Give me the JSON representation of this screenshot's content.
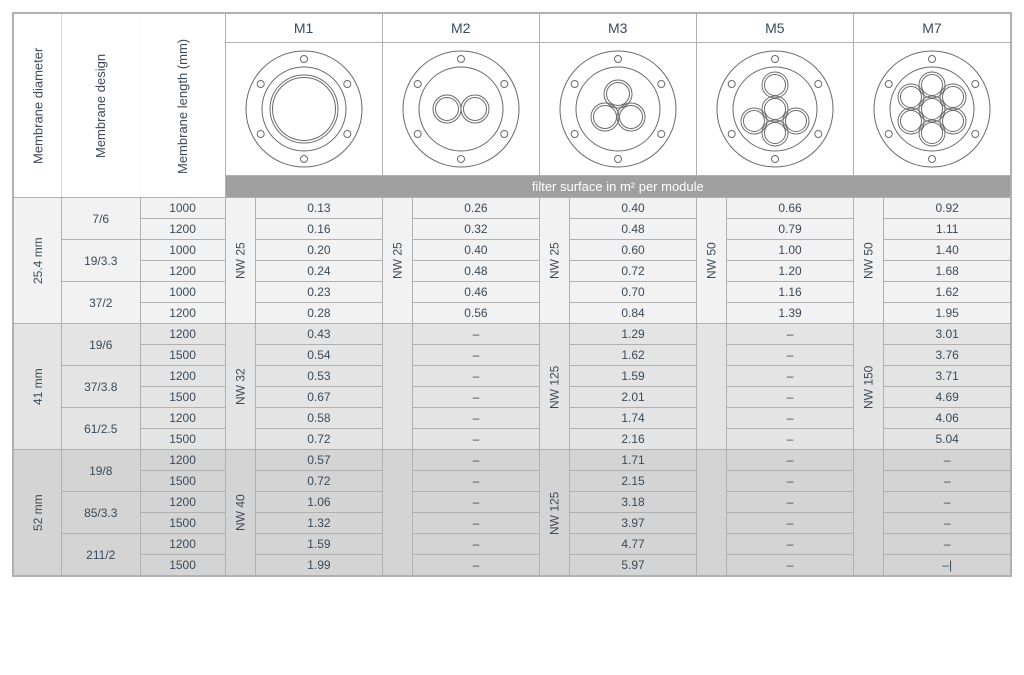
{
  "headers": {
    "diameter": "Membrane diameter",
    "design": "Membrane design",
    "length": "Membrane length (mm)",
    "modules": [
      "M1",
      "M2",
      "M3",
      "M5",
      "M7"
    ],
    "banner": "filter surface in m² per module"
  },
  "diagrams": {
    "flange": {
      "outer_r": 58,
      "inner_r": 42,
      "bolt_r": 50,
      "bolt_n": 6,
      "bolt_hole_r": 3.5,
      "stroke": "#6a6a6a"
    },
    "tubes": [
      [
        [
          0,
          0,
          34
        ]
      ],
      [
        [
          -14,
          0,
          14
        ],
        [
          14,
          0,
          14
        ]
      ],
      [
        [
          0,
          -15,
          14
        ],
        [
          -13,
          8,
          14
        ],
        [
          13,
          8,
          14
        ]
      ],
      [
        [
          0,
          0,
          13
        ],
        [
          0,
          -24,
          13
        ],
        [
          0,
          24,
          13
        ],
        [
          -21,
          12,
          13
        ],
        [
          21,
          12,
          13
        ]
      ],
      [
        [
          0,
          0,
          13
        ],
        [
          0,
          -24,
          13
        ],
        [
          0,
          24,
          13
        ],
        [
          -21,
          12,
          13
        ],
        [
          21,
          12,
          13
        ],
        [
          -21,
          -12,
          13
        ],
        [
          21,
          -12,
          13
        ]
      ]
    ]
  },
  "sections": [
    {
      "diameter": "25.4 mm",
      "shade": "sec0",
      "nw": [
        "NW 25",
        "NW 25",
        "NW 25",
        "NW 50",
        "NW 50"
      ],
      "designs": [
        {
          "design": "7/6",
          "rows": [
            {
              "len": "1000",
              "v": [
                "0.13",
                "0.26",
                "0.40",
                "0.66",
                "0.92"
              ]
            },
            {
              "len": "1200",
              "v": [
                "0.16",
                "0.32",
                "0.48",
                "0.79",
                "1.11"
              ]
            }
          ]
        },
        {
          "design": "19/3.3",
          "rows": [
            {
              "len": "1000",
              "v": [
                "0.20",
                "0.40",
                "0.60",
                "1.00",
                "1.40"
              ]
            },
            {
              "len": "1200",
              "v": [
                "0.24",
                "0.48",
                "0.72",
                "1.20",
                "1.68"
              ]
            }
          ]
        },
        {
          "design": "37/2",
          "rows": [
            {
              "len": "1000",
              "v": [
                "0.23",
                "0.46",
                "0.70",
                "1.16",
                "1.62"
              ]
            },
            {
              "len": "1200",
              "v": [
                "0.28",
                "0.56",
                "0.84",
                "1.39",
                "1.95"
              ]
            }
          ]
        }
      ]
    },
    {
      "diameter": "41 mm",
      "shade": "sec1",
      "nw": [
        "NW 32",
        "",
        "NW 125",
        "",
        "NW 150"
      ],
      "designs": [
        {
          "design": "19/6",
          "rows": [
            {
              "len": "1200",
              "v": [
                "0.43",
                "–",
                "1.29",
                "–",
                "3.01"
              ]
            },
            {
              "len": "1500",
              "v": [
                "0.54",
                "–",
                "1.62",
                "–",
                "3.76"
              ]
            }
          ]
        },
        {
          "design": "37/3.8",
          "rows": [
            {
              "len": "1200",
              "v": [
                "0.53",
                "–",
                "1.59",
                "–",
                "3.71"
              ]
            },
            {
              "len": "1500",
              "v": [
                "0.67",
                "–",
                "2.01",
                "–",
                "4.69"
              ]
            }
          ]
        },
        {
          "design": "61/2.5",
          "rows": [
            {
              "len": "1200",
              "v": [
                "0.58",
                "–",
                "1.74",
                "–",
                "4.06"
              ]
            },
            {
              "len": "1500",
              "v": [
                "0.72",
                "–",
                "2.16",
                "–",
                "5.04"
              ]
            }
          ]
        }
      ]
    },
    {
      "diameter": "52 mm",
      "shade": "sec2",
      "nw": [
        "NW 40",
        "",
        "NW 125",
        "",
        ""
      ],
      "designs": [
        {
          "design": "19/8",
          "rows": [
            {
              "len": "1200",
              "v": [
                "0.57",
                "–",
                "1.71",
                "–",
                "–"
              ]
            },
            {
              "len": "1500",
              "v": [
                "0.72",
                "–",
                "2.15",
                "–",
                "–"
              ]
            }
          ]
        },
        {
          "design": "85/3.3",
          "rows": [
            {
              "len": "1200",
              "v": [
                "1.06",
                "–",
                "3.18",
                "–",
                "–"
              ]
            },
            {
              "len": "1500",
              "v": [
                "1.32",
                "–",
                "3.97",
                "–",
                "–"
              ]
            }
          ]
        },
        {
          "design": "211/2",
          "rows": [
            {
              "len": "1200",
              "v": [
                "1.59",
                "–",
                "4.77",
                "–",
                "–"
              ]
            },
            {
              "len": "1500",
              "v": [
                "1.99",
                "–",
                "5.97",
                "–",
                "–|"
              ]
            }
          ]
        }
      ]
    }
  ]
}
